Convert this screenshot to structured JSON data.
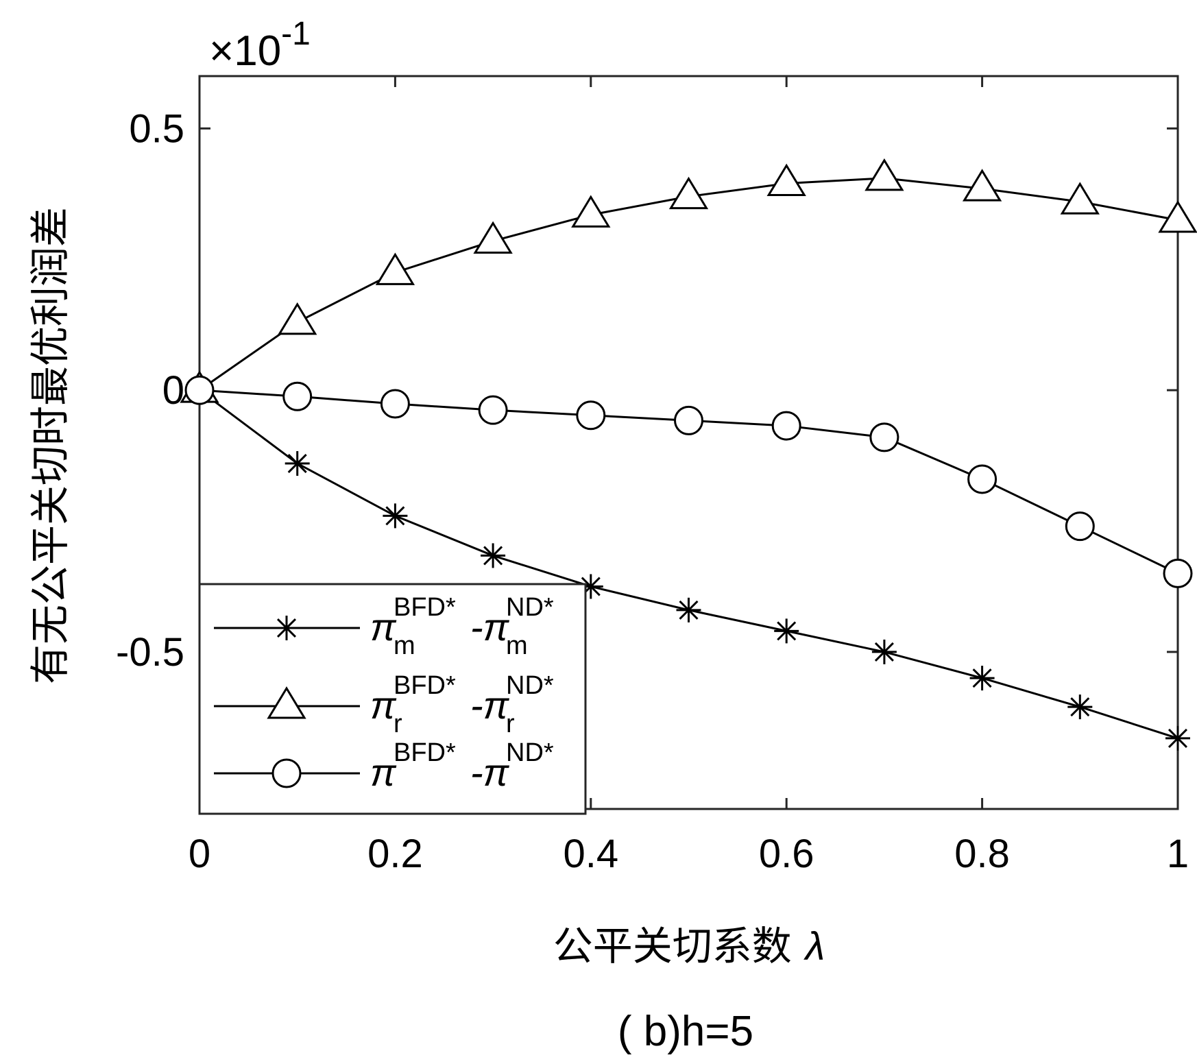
{
  "chart_data": {
    "type": "line",
    "x": [
      0,
      0.1,
      0.2,
      0.3,
      0.4,
      0.5,
      0.6,
      0.7,
      0.8,
      0.9,
      1
    ],
    "series": [
      {
        "key": "m",
        "marker": "asterisk",
        "name_main": "π",
        "name_sup1": "BFD*",
        "name_sub1": "m",
        "name_dash": "-π",
        "name_sup2": "ND*",
        "name_sub2": "m",
        "values": [
          0,
          -0.14,
          -0.24,
          -0.316,
          -0.375,
          -0.42,
          -0.46,
          -0.5,
          -0.55,
          -0.605,
          -0.665
        ]
      },
      {
        "key": "r",
        "marker": "triangle",
        "name_main": "π",
        "name_sup1": "BFD*",
        "name_sub1": "r",
        "name_dash": "-π",
        "name_sup2": "ND*",
        "name_sub2": "r",
        "values": [
          0,
          0.13,
          0.225,
          0.285,
          0.335,
          0.37,
          0.395,
          0.405,
          0.385,
          0.36,
          0.325
        ]
      },
      {
        "key": "t",
        "marker": "circle",
        "name_main": "π",
        "name_sup1": "BFD*",
        "name_sub1": "",
        "name_dash": "-π",
        "name_sup2": "ND*",
        "name_sub2": "",
        "values": [
          0,
          -0.012,
          -0.026,
          -0.038,
          -0.048,
          -0.058,
          -0.068,
          -0.09,
          -0.17,
          -0.26,
          -0.35
        ]
      }
    ],
    "xlim": [
      0,
      1
    ],
    "ylim": [
      -0.8,
      0.6
    ],
    "xticks": [
      "0",
      "0.2",
      "0.4",
      "0.6",
      "0.8",
      "1"
    ],
    "xtick_values": [
      0,
      0.2,
      0.4,
      0.6,
      0.8,
      1
    ],
    "yticks": [
      "-0.5",
      "0",
      "0.5"
    ],
    "ytick_values": [
      -0.5,
      0,
      0.5
    ],
    "exponent_label": "×10",
    "exponent_power": "-1",
    "xlabel": "公平关切系数",
    "xlabel_symbol": "λ",
    "ylabel": "有无公平关切时最优利润差",
    "caption": "( b)h=5",
    "legend_position": "lower-left",
    "grid": false
  }
}
